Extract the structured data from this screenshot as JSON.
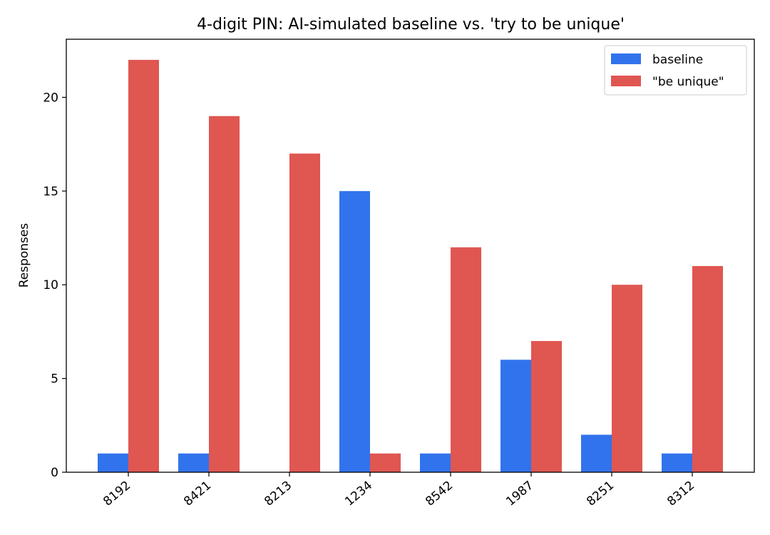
{
  "chart_data": {
    "type": "bar",
    "title": "4-digit PIN: AI-simulated baseline vs. 'try to be unique'",
    "xlabel": "",
    "ylabel": "Responses",
    "categories": [
      "8192",
      "8421",
      "8213",
      "1234",
      "8542",
      "1987",
      "8251",
      "8312"
    ],
    "series": [
      {
        "name": "baseline",
        "color": "#3173ec",
        "values": [
          1,
          1,
          0,
          15,
          1,
          6,
          2,
          1
        ]
      },
      {
        "name": "\"be unique\"",
        "color": "#e05651",
        "values": [
          22,
          19,
          17,
          1,
          12,
          7,
          10,
          11
        ]
      }
    ],
    "ylim": [
      0,
      23.1
    ],
    "yticks": [
      0,
      5,
      10,
      15,
      20
    ],
    "grid": false,
    "legend_position": "top-right"
  }
}
